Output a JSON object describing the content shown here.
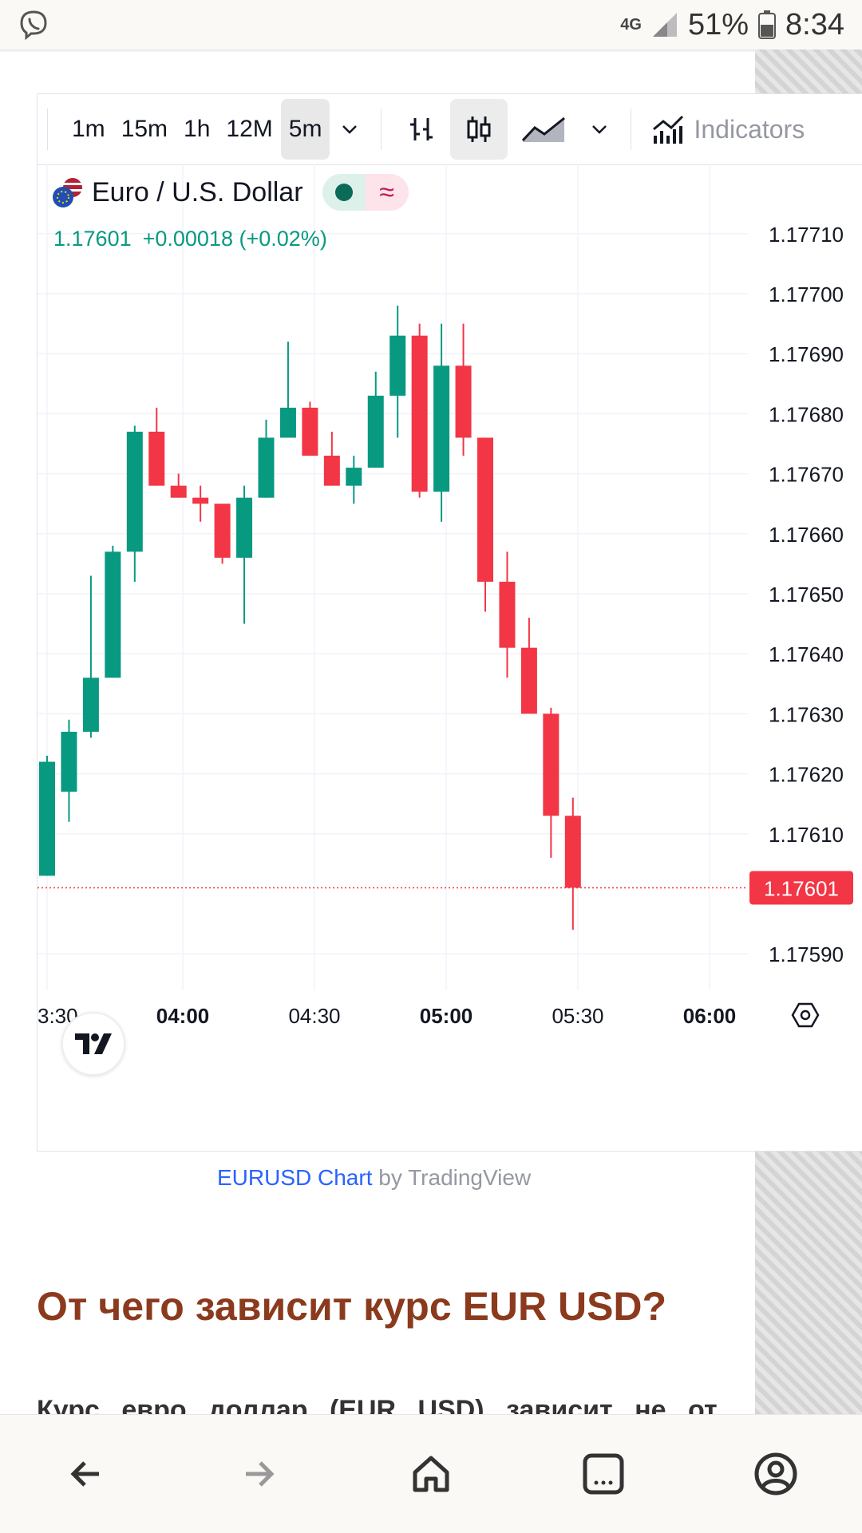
{
  "status": {
    "network": "4G",
    "battery": "51%",
    "time": "8:34"
  },
  "widget": {
    "toolbar": {
      "timeframes": [
        "1m",
        "15m",
        "1h",
        "12M",
        "5m"
      ],
      "active_timeframe": "5m",
      "indicators_label": "Indicators"
    },
    "symbol": {
      "title": "Euro / U.S. Dollar",
      "price": "1.17601",
      "change": "+0.00018",
      "change_pct": "(+0.02%)",
      "tilde": "≈"
    }
  },
  "chart_data": {
    "type": "candlestick",
    "y_ticks": [
      "1.17710",
      "1.17700",
      "1.17690",
      "1.17680",
      "1.17670",
      "1.17660",
      "1.17650",
      "1.17640",
      "1.17630",
      "1.17620",
      "1.17610",
      "1.17590"
    ],
    "x_ticks": [
      "3:30",
      "04:00",
      "04:30",
      "05:00",
      "05:30",
      "06:00"
    ],
    "last_price_label": "1.17601",
    "candles": [
      {
        "o": 1.17603,
        "h": 1.17623,
        "l": 1.17603,
        "c": 1.17622
      },
      {
        "o": 1.17617,
        "h": 1.17629,
        "l": 1.17612,
        "c": 1.17627
      },
      {
        "o": 1.17627,
        "h": 1.17653,
        "l": 1.17626,
        "c": 1.17636
      },
      {
        "o": 1.17636,
        "h": 1.17658,
        "l": 1.17636,
        "c": 1.17657
      },
      {
        "o": 1.17657,
        "h": 1.17678,
        "l": 1.17652,
        "c": 1.17677
      },
      {
        "o": 1.17677,
        "h": 1.17681,
        "l": 1.17668,
        "c": 1.17668
      },
      {
        "o": 1.17668,
        "h": 1.1767,
        "l": 1.17666,
        "c": 1.17666
      },
      {
        "o": 1.17666,
        "h": 1.17668,
        "l": 1.17662,
        "c": 1.17665
      },
      {
        "o": 1.17665,
        "h": 1.17665,
        "l": 1.17655,
        "c": 1.17656
      },
      {
        "o": 1.17656,
        "h": 1.17668,
        "l": 1.17645,
        "c": 1.17666
      },
      {
        "o": 1.17666,
        "h": 1.17679,
        "l": 1.17666,
        "c": 1.17676
      },
      {
        "o": 1.17676,
        "h": 1.17692,
        "l": 1.17676,
        "c": 1.17681
      },
      {
        "o": 1.17681,
        "h": 1.17682,
        "l": 1.17673,
        "c": 1.17673
      },
      {
        "o": 1.17673,
        "h": 1.17677,
        "l": 1.17668,
        "c": 1.17668
      },
      {
        "o": 1.17668,
        "h": 1.17673,
        "l": 1.17665,
        "c": 1.17671
      },
      {
        "o": 1.17671,
        "h": 1.17687,
        "l": 1.17671,
        "c": 1.17683
      },
      {
        "o": 1.17683,
        "h": 1.17698,
        "l": 1.17676,
        "c": 1.17693
      },
      {
        "o": 1.17693,
        "h": 1.17695,
        "l": 1.17666,
        "c": 1.17667
      },
      {
        "o": 1.17667,
        "h": 1.17695,
        "l": 1.17662,
        "c": 1.17688
      },
      {
        "o": 1.17688,
        "h": 1.17695,
        "l": 1.17673,
        "c": 1.17676
      },
      {
        "o": 1.17676,
        "h": 1.17676,
        "l": 1.17647,
        "c": 1.17652
      },
      {
        "o": 1.17652,
        "h": 1.17657,
        "l": 1.17636,
        "c": 1.17641
      },
      {
        "o": 1.17641,
        "h": 1.17646,
        "l": 1.1763,
        "c": 1.1763
      },
      {
        "o": 1.1763,
        "h": 1.17631,
        "l": 1.17606,
        "c": 1.17613
      },
      {
        "o": 1.17613,
        "h": 1.17616,
        "l": 1.17594,
        "c": 1.17601
      }
    ],
    "colors": {
      "up": "#089981",
      "down": "#f23645",
      "grid": "#f0f3fa",
      "last": "#f23645"
    }
  },
  "caption": {
    "link": "EURUSD Chart",
    "by": " by TradingView"
  },
  "article": {
    "heading": "От чего зависит курс EUR USD?",
    "paragraph": "Курс евро доллар (EUR USD) зависит не от"
  },
  "nav": {
    "icons": [
      "back-icon",
      "forward-icon",
      "home-icon",
      "tabs-icon",
      "account-icon"
    ]
  }
}
